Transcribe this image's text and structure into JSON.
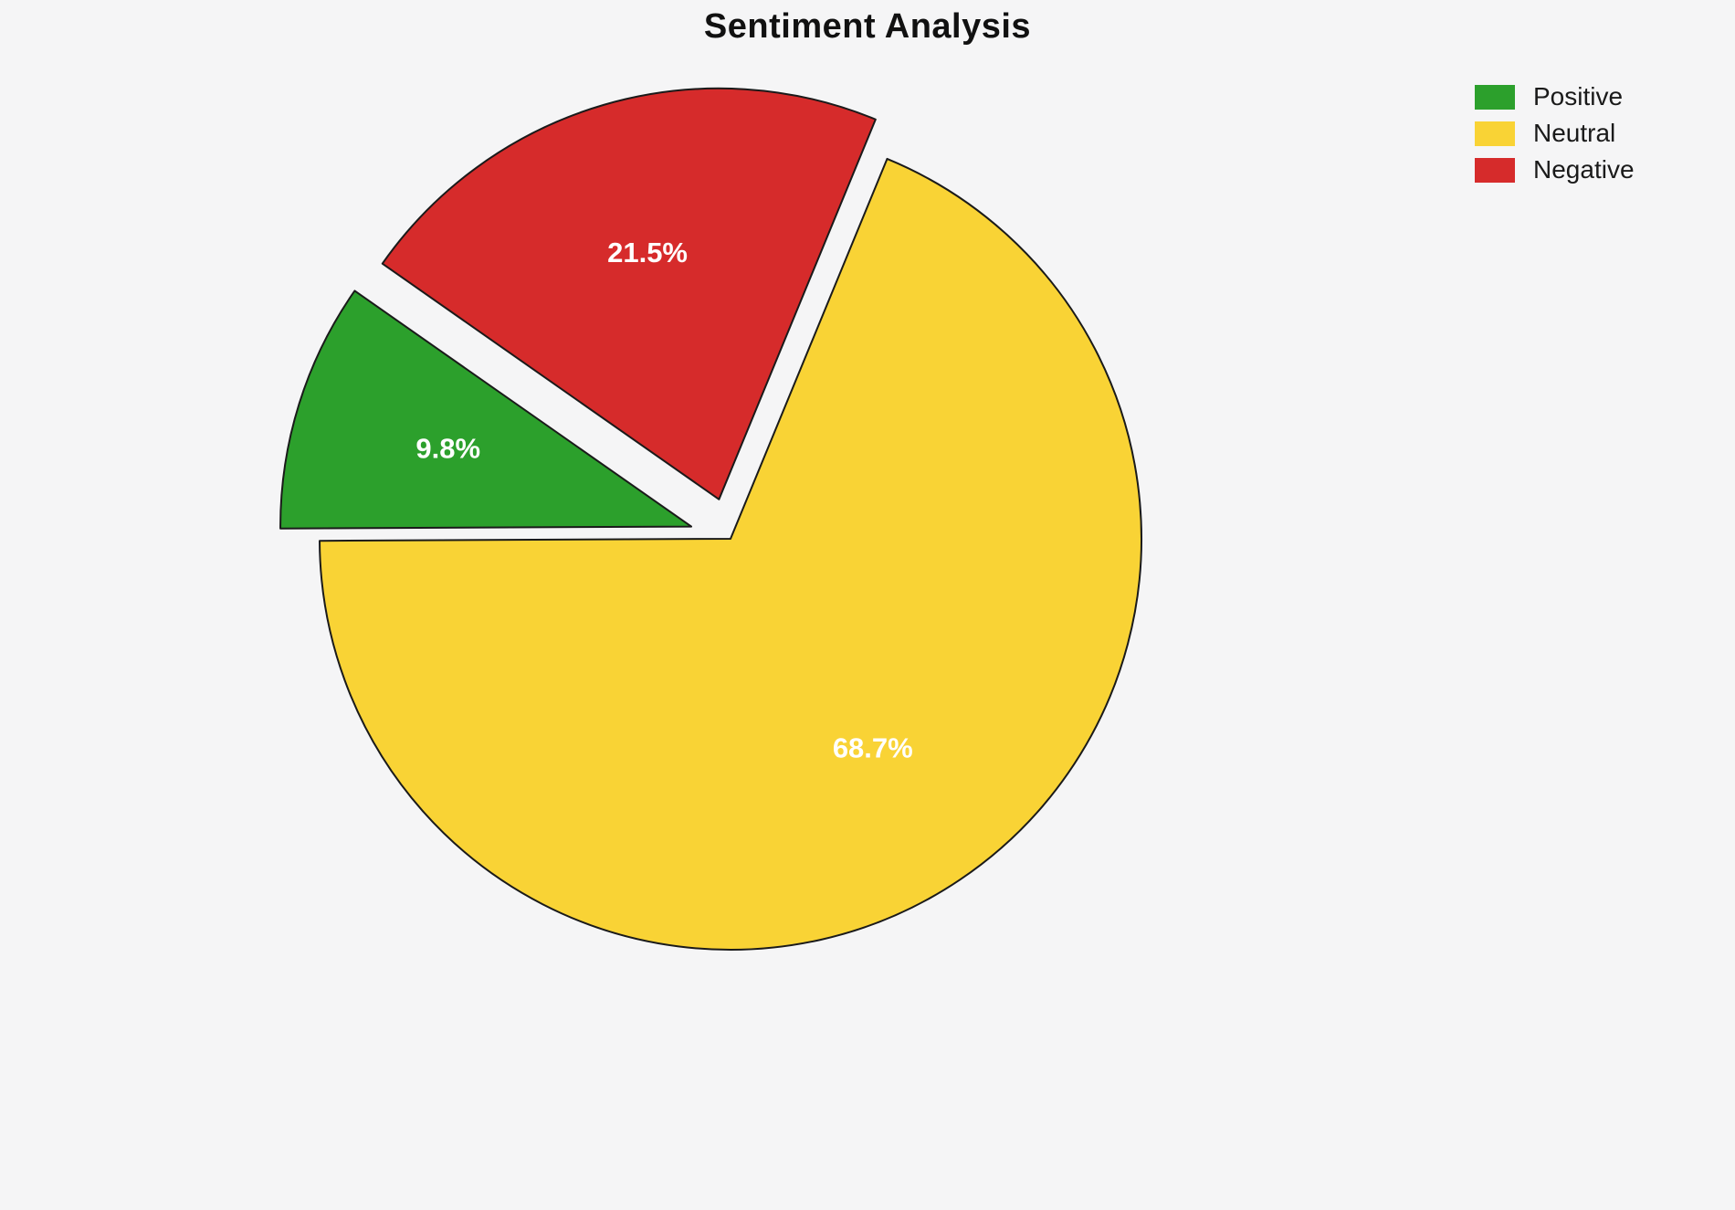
{
  "title": "Sentiment Analysis",
  "background_color": "#f5f5f6",
  "chart_data": {
    "type": "pie",
    "title": "Sentiment Analysis",
    "labels": [
      "Positive",
      "Neutral",
      "Negative"
    ],
    "values": [
      9.8,
      68.7,
      21.5
    ],
    "slices": [
      {
        "label": "Positive",
        "value": 9.8,
        "pct_label": "9.8%",
        "color": "#2ca02c",
        "explode": 0.1
      },
      {
        "label": "Neutral",
        "value": 68.7,
        "pct_label": "68.7%",
        "color": "#f9d335",
        "explode": 0
      },
      {
        "label": "Negative",
        "value": 21.5,
        "pct_label": "21.5%",
        "color": "#d62b2b",
        "explode": 0.1
      }
    ],
    "start_angle": 145,
    "direction": "counterclockwise",
    "legend_position": "upper right",
    "pct_label_color": "#ffffff",
    "edge_color": "#1a1a1a",
    "grid": false
  },
  "legend": {
    "items": [
      {
        "label": "Positive",
        "color": "#2ca02c"
      },
      {
        "label": "Neutral",
        "color": "#f9d335"
      },
      {
        "label": "Negative",
        "color": "#d62b2b"
      }
    ]
  }
}
